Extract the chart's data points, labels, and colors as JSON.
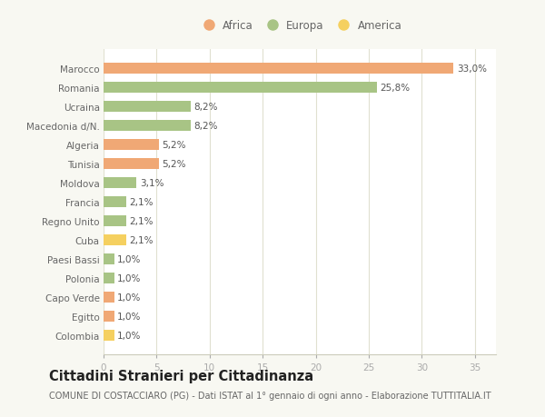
{
  "countries": [
    "Marocco",
    "Romania",
    "Ucraina",
    "Macedonia d/N.",
    "Algeria",
    "Tunisia",
    "Moldova",
    "Francia",
    "Regno Unito",
    "Cuba",
    "Paesi Bassi",
    "Polonia",
    "Capo Verde",
    "Egitto",
    "Colombia"
  ],
  "values": [
    33.0,
    25.8,
    8.2,
    8.2,
    5.2,
    5.2,
    3.1,
    2.1,
    2.1,
    2.1,
    1.0,
    1.0,
    1.0,
    1.0,
    1.0
  ],
  "labels": [
    "33,0%",
    "25,8%",
    "8,2%",
    "8,2%",
    "5,2%",
    "5,2%",
    "3,1%",
    "2,1%",
    "2,1%",
    "2,1%",
    "1,0%",
    "1,0%",
    "1,0%",
    "1,0%",
    "1,0%"
  ],
  "colors": [
    "#f0a875",
    "#a8c485",
    "#a8c485",
    "#a8c485",
    "#f0a875",
    "#f0a875",
    "#a8c485",
    "#a8c485",
    "#a8c485",
    "#f5d060",
    "#a8c485",
    "#a8c485",
    "#f0a875",
    "#f0a875",
    "#f5d060"
  ],
  "legend_labels": [
    "Africa",
    "Europa",
    "America"
  ],
  "legend_colors": [
    "#f0a875",
    "#a8c485",
    "#f5d060"
  ],
  "title": "Cittadini Stranieri per Cittadinanza",
  "subtitle": "COMUNE DI COSTACCIARO (PG) - Dati ISTAT al 1° gennaio di ogni anno - Elaborazione TUTTITALIA.IT",
  "xlim": [
    0,
    37
  ],
  "xticks": [
    0,
    5,
    10,
    15,
    20,
    25,
    30,
    35
  ],
  "background_color": "#f8f8f2",
  "plot_background": "#ffffff",
  "grid_color": "#e0e0d0",
  "label_fontsize": 7.5,
  "tick_fontsize": 7.5,
  "ytick_fontsize": 7.5,
  "title_fontsize": 10.5,
  "subtitle_fontsize": 7.0,
  "legend_fontsize": 8.5,
  "bar_height": 0.55
}
